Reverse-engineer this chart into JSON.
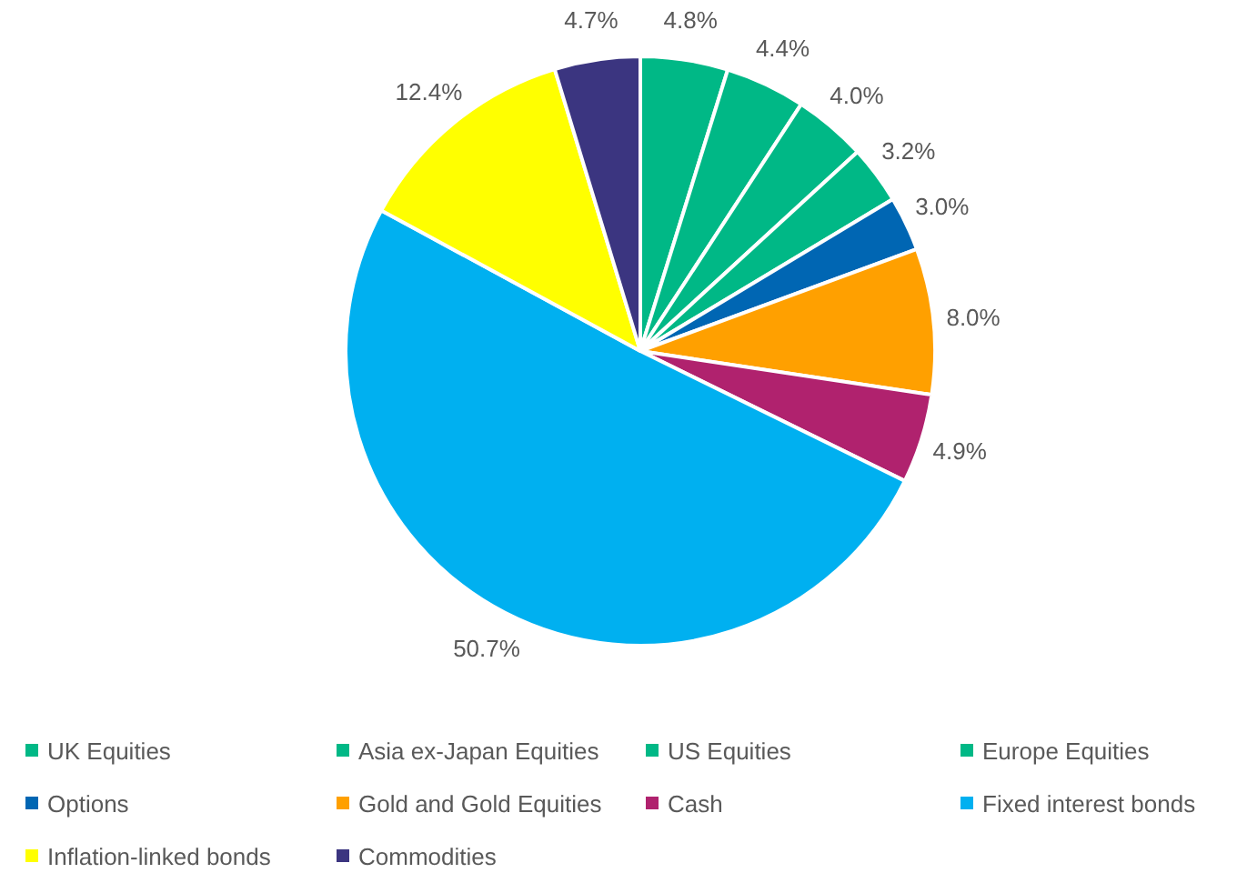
{
  "chart_data": {
    "type": "pie",
    "categories": [
      "UK Equities",
      "Asia ex-Japan Equities",
      "US Equities",
      "Europe Equities",
      "Options",
      "Gold and Gold Equities",
      "Cash",
      "Fixed interest bonds",
      "Inflation-linked bonds",
      "Commodities"
    ],
    "values": [
      4.8,
      4.4,
      4.0,
      3.2,
      3.0,
      8.0,
      4.9,
      50.7,
      12.4,
      4.7
    ],
    "value_labels": [
      "4.8%",
      "4.4%",
      "4.0%",
      "3.2%",
      "3.0%",
      "8.0%",
      "4.9%",
      "50.7%",
      "12.4%",
      "4.7%"
    ],
    "colors": [
      "#00b886",
      "#00b886",
      "#00b886",
      "#00b886",
      "#0066b3",
      "#ffa000",
      "#b0226e",
      "#00b0f0",
      "#ffff00",
      "#3b3580"
    ],
    "legend": "bottom"
  }
}
